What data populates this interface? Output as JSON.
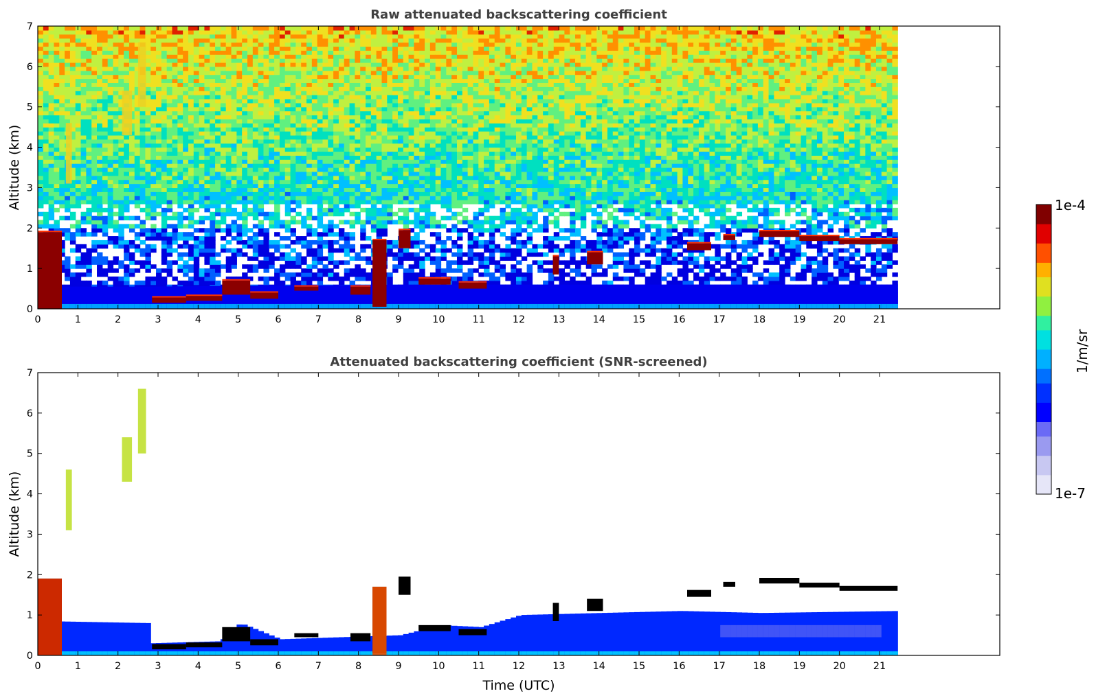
{
  "colors": {
    "colormap": [
      "#e6e6f8",
      "#c8c8f2",
      "#9a9af0",
      "#6a6af6",
      "#0000ff",
      "#0030ff",
      "#0070ff",
      "#00b0ff",
      "#00e0e0",
      "#30f0a0",
      "#90f040",
      "#e0e020",
      "#ffb000",
      "#ff5000",
      "#e00000",
      "#800000"
    ],
    "raw_noise": [
      "#0000e0",
      "#0060ff",
      "#00c0ff",
      "#00e0c0",
      "#60f080",
      "#c0f040",
      "#f0e020",
      "#ff9000",
      "#e02000"
    ],
    "cloud_core": "#8b0000",
    "screened_shelf": "#000000"
  },
  "chart_data": [
    {
      "type": "heatmap",
      "title": "Raw attenuated backscattering coefficient",
      "xlabel": "",
      "ylabel": "Altitude (km)",
      "xlim": [
        0,
        24
      ],
      "ylim": [
        0,
        7
      ],
      "xticks": [
        "0",
        "1",
        "2",
        "3",
        "4",
        "5",
        "6",
        "7",
        "8",
        "9",
        "10",
        "11",
        "12",
        "13",
        "14",
        "15",
        "16",
        "17",
        "18",
        "19",
        "20",
        "21"
      ],
      "yticks": [
        "0",
        "1",
        "2",
        "3",
        "4",
        "5",
        "6",
        "7"
      ],
      "data_end_time": 21.45,
      "boundary_layer_top_km": [
        {
          "t": 0.0,
          "h": 0.55
        },
        {
          "t": 2.7,
          "h": 0.55
        },
        {
          "t": 9.2,
          "h": 0.6
        },
        {
          "t": 21.45,
          "h": 0.6
        }
      ],
      "cloud_layers": [
        {
          "t0": 0.0,
          "t1": 0.6,
          "base": 0.0,
          "top": 1.9
        },
        {
          "t0": 2.85,
          "t1": 3.7,
          "base": 0.15,
          "top": 0.28
        },
        {
          "t0": 3.7,
          "t1": 4.6,
          "base": 0.2,
          "top": 0.32
        },
        {
          "t0": 4.6,
          "t1": 5.3,
          "base": 0.35,
          "top": 0.7
        },
        {
          "t0": 5.3,
          "t1": 6.0,
          "base": 0.25,
          "top": 0.4
        },
        {
          "t0": 6.4,
          "t1": 7.0,
          "base": 0.45,
          "top": 0.55
        },
        {
          "t0": 7.8,
          "t1": 8.3,
          "base": 0.35,
          "top": 0.55
        },
        {
          "t0": 8.35,
          "t1": 8.7,
          "base": 0.05,
          "top": 1.7
        },
        {
          "t0": 9.0,
          "t1": 9.3,
          "base": 1.5,
          "top": 1.95
        },
        {
          "t0": 9.5,
          "t1": 10.3,
          "base": 0.6,
          "top": 0.75
        },
        {
          "t0": 10.5,
          "t1": 11.2,
          "base": 0.5,
          "top": 0.65
        },
        {
          "t0": 12.85,
          "t1": 13.0,
          "base": 0.85,
          "top": 1.3
        },
        {
          "t0": 13.7,
          "t1": 14.1,
          "base": 1.1,
          "top": 1.4
        },
        {
          "t0": 16.2,
          "t1": 16.8,
          "base": 1.45,
          "top": 1.62
        },
        {
          "t0": 17.1,
          "t1": 17.4,
          "base": 1.7,
          "top": 1.82
        },
        {
          "t0": 18.0,
          "t1": 19.0,
          "base": 1.78,
          "top": 1.92
        },
        {
          "t0": 19.0,
          "t1": 20.0,
          "base": 1.68,
          "top": 1.8
        },
        {
          "t0": 20.0,
          "t1": 21.45,
          "base": 1.6,
          "top": 1.72
        }
      ],
      "aerosol_streaks": [
        {
          "t0": 0.7,
          "t1": 0.85,
          "base": 3.1,
          "top": 4.6
        },
        {
          "t0": 2.1,
          "t1": 2.35,
          "base": 4.3,
          "top": 5.4
        },
        {
          "t0": 2.5,
          "t1": 2.7,
          "base": 5.0,
          "top": 6.6
        }
      ]
    },
    {
      "type": "heatmap",
      "title": "Attenuated backscattering coefficient (SNR-screened)",
      "xlabel": "Time (UTC)",
      "ylabel": "Altitude (km)",
      "xlim": [
        0,
        24
      ],
      "ylim": [
        0,
        7
      ],
      "xticks": [
        "0",
        "1",
        "2",
        "3",
        "4",
        "5",
        "6",
        "7",
        "8",
        "9",
        "10",
        "11",
        "12",
        "13",
        "14",
        "15",
        "16",
        "17",
        "18",
        "19",
        "20",
        "21"
      ],
      "yticks": [
        "0",
        "1",
        "2",
        "3",
        "4",
        "5",
        "6",
        "7"
      ],
      "data_end_time": 21.45,
      "screened_layer_top_km": [
        {
          "t": 0.0,
          "h": 0.85
        },
        {
          "t": 2.7,
          "h": 0.8
        },
        {
          "t": 2.75,
          "h": 0.3
        },
        {
          "t": 4.5,
          "h": 0.35
        },
        {
          "t": 5.0,
          "h": 0.8
        },
        {
          "t": 6.0,
          "h": 0.4
        },
        {
          "t": 9.0,
          "h": 0.5
        },
        {
          "t": 10.0,
          "h": 0.75
        },
        {
          "t": 11.0,
          "h": 0.7
        },
        {
          "t": 12.0,
          "h": 1.0
        },
        {
          "t": 16.0,
          "h": 1.1
        },
        {
          "t": 18.0,
          "h": 1.05
        },
        {
          "t": 21.45,
          "h": 1.1
        }
      ]
    }
  ],
  "colorbar": {
    "label": "1/m/sr",
    "max_label": "1e-4",
    "min_label": "1e-7",
    "vmin": 1e-07,
    "vmax": 0.0001,
    "scale": "log"
  }
}
